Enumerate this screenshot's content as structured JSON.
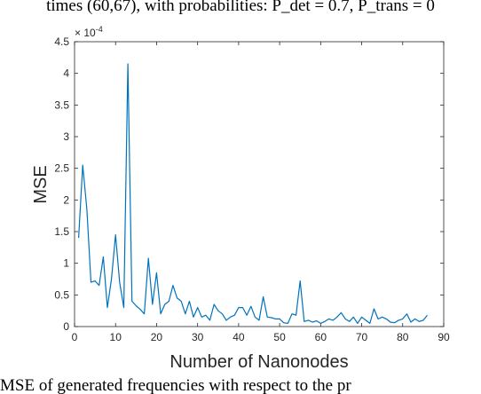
{
  "caption_top": "times (60,67), with probabilities: P_det = 0.7, P_trans = 0",
  "caption_bottom": "MSE of generated frequencies with respect to the pr",
  "chart_data": {
    "type": "line",
    "title": "",
    "xlabel": "Number of Nanonodes",
    "ylabel": "MSE",
    "y_multiplier": "×10^-4",
    "y_multiplier_base": "× 10",
    "y_multiplier_exp": "-4",
    "xlim": [
      0,
      90
    ],
    "ylim": [
      0,
      4.5
    ],
    "xticks": [
      0,
      10,
      20,
      30,
      40,
      50,
      60,
      70,
      80,
      90
    ],
    "yticks": [
      0,
      0.5,
      1,
      1.5,
      2,
      2.5,
      3,
      3.5,
      4,
      4.5
    ],
    "grid": false,
    "line_color": "#0072BD",
    "x": [
      1,
      2,
      3,
      4,
      5,
      6,
      7,
      8,
      9,
      10,
      11,
      12,
      13,
      14,
      15,
      16,
      17,
      18,
      19,
      20,
      21,
      22,
      23,
      24,
      25,
      26,
      27,
      28,
      29,
      30,
      31,
      32,
      33,
      34,
      35,
      36,
      37,
      38,
      39,
      40,
      41,
      42,
      43,
      44,
      45,
      46,
      47,
      48,
      49,
      50,
      51,
      52,
      53,
      54,
      55,
      56,
      57,
      58,
      59,
      60,
      61,
      62,
      63,
      64,
      65,
      66,
      67,
      68,
      69,
      70,
      71,
      72,
      73,
      74,
      75,
      76,
      77,
      78,
      79,
      80,
      81,
      82,
      83,
      84,
      85,
      86
    ],
    "y": [
      1.4,
      2.55,
      1.85,
      0.7,
      0.72,
      0.65,
      1.1,
      0.3,
      0.75,
      1.45,
      0.7,
      0.3,
      4.15,
      0.4,
      0.33,
      0.27,
      0.2,
      1.08,
      0.35,
      0.85,
      0.2,
      0.35,
      0.4,
      0.65,
      0.45,
      0.4,
      0.2,
      0.4,
      0.15,
      0.3,
      0.15,
      0.18,
      0.1,
      0.35,
      0.25,
      0.2,
      0.1,
      0.15,
      0.18,
      0.3,
      0.3,
      0.18,
      0.32,
      0.15,
      0.1,
      0.47,
      0.15,
      0.14,
      0.12,
      0.12,
      0.06,
      0.05,
      0.2,
      0.18,
      0.72,
      0.08,
      0.1,
      0.07,
      0.09,
      0.05,
      0.08,
      0.12,
      0.1,
      0.15,
      0.22,
      0.12,
      0.08,
      0.15,
      0.05,
      0.15,
      0.1,
      0.05,
      0.28,
      0.12,
      0.15,
      0.12,
      0.07,
      0.06,
      0.1,
      0.12,
      0.2,
      0.07,
      0.12,
      0.08,
      0.1,
      0.18
    ]
  }
}
